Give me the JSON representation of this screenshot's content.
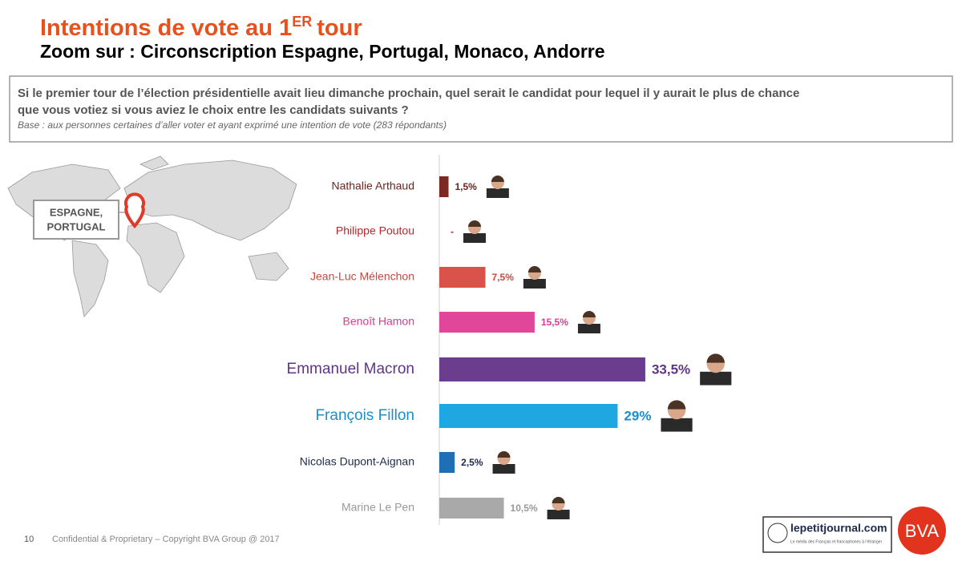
{
  "header": {
    "title": "Intentions de vote au 1",
    "title_sup": "ER",
    "title_end": "tour",
    "subtitle": "Zoom sur : Circonscription Espagne, Portugal, Monaco, Andorre"
  },
  "question": {
    "lines": [
      "Si le premier tour de l’élection présidentielle avait lieu dimanche prochain, quel serait le candidat pour lequel il y aurait le plus de chance",
      "que vous votiez si vous aviez le choix entre les candidats suivants ?"
    ],
    "base": "Base : aux personnes certaines d’aller voter et ayant exprimé une intention de vote (283 répondants)"
  },
  "map": {
    "label_lines": [
      "ESPAGNE,",
      "PORTUGAL"
    ]
  },
  "chart_data": {
    "type": "hbar",
    "categories": [
      "Nathalie Arthaud",
      "Philippe Poutou",
      "Jean-Luc Mélenchon",
      "Benoît Hamon",
      "Emmanuel Macron",
      "François Fillon",
      "Nicolas Dupont-Aignan",
      "Marine Le Pen"
    ],
    "values": [
      1.5,
      null,
      7.5,
      15.5,
      33.5,
      29,
      2.5,
      10.5
    ],
    "value_labels": [
      "1,5%",
      "-",
      "7,5%",
      "15,5%",
      "33,5%",
      "29%",
      "2,5%",
      "10,5%"
    ],
    "colors": [
      "#7a2a22",
      "#b8282a",
      "#d9534a",
      "#e0479a",
      "#6a3d8f",
      "#1ea7e0",
      "#1f6fb5",
      "#a9a9a9"
    ],
    "label_colors": [
      "#6b2320",
      "#b8282a",
      "#c9473d",
      "#d93d8e",
      "#5e3585",
      "#1b8fc6",
      "#1d2a4a",
      "#999999"
    ]
  },
  "footer": {
    "page": "10",
    "copyright": "Confidential & Proprietary – Copyright BVA Group @  2017",
    "partner": "lepetitjournal.com",
    "partner_tagline": "Le média des Français et francophones à l’étranger",
    "brand": "BVA"
  }
}
